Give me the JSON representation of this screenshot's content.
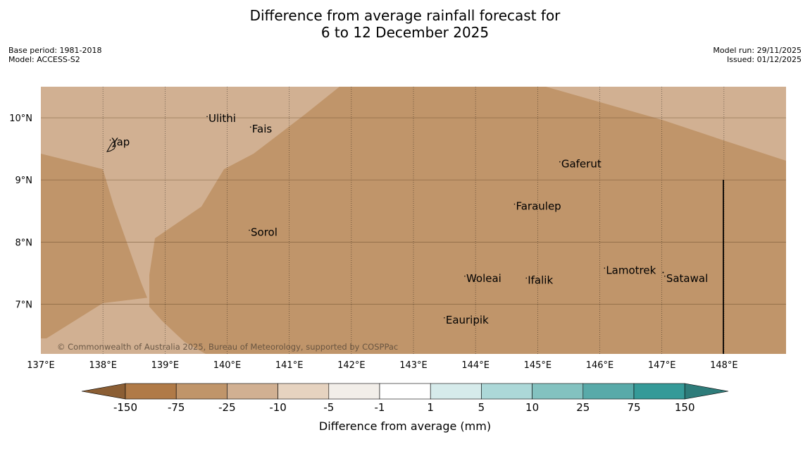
{
  "title": {
    "line1": "Difference from average rainfall forecast for",
    "line2": "6 to 12 December 2025"
  },
  "meta_left": {
    "base_period": "Base period: 1981-2018",
    "model": "Model: ACCESS-S2"
  },
  "meta_right": {
    "model_run": "Model run: 29/11/2025",
    "issued": "Issued: 01/12/2025"
  },
  "map": {
    "lon_range": [
      137,
      149
    ],
    "lat_range": [
      6.2,
      10.5
    ],
    "lon_ticks": [
      {
        "value": 137,
        "label": "137°E"
      },
      {
        "value": 138,
        "label": "138°E"
      },
      {
        "value": 139,
        "label": "139°E"
      },
      {
        "value": 140,
        "label": "140°E"
      },
      {
        "value": 141,
        "label": "141°E"
      },
      {
        "value": 142,
        "label": "142°E"
      },
      {
        "value": 143,
        "label": "143°E"
      },
      {
        "value": 144,
        "label": "144°E"
      },
      {
        "value": 145,
        "label": "145°E"
      },
      {
        "value": 146,
        "label": "146°E"
      },
      {
        "value": 147,
        "label": "147°E"
      },
      {
        "value": 148,
        "label": "148°E"
      }
    ],
    "lat_ticks": [
      {
        "value": 10,
        "label": "10°N"
      },
      {
        "value": 9,
        "label": "9°N"
      },
      {
        "value": 8,
        "label": "8°N"
      },
      {
        "value": 7,
        "label": "7°N"
      }
    ],
    "places": [
      {
        "name": "Yap",
        "lon": 138.14,
        "lat": 9.55
      },
      {
        "name": "Ulithi",
        "lon": 139.7,
        "lat": 9.93
      },
      {
        "name": "Fais",
        "lon": 140.4,
        "lat": 9.76
      },
      {
        "name": "Gaferut",
        "lon": 145.38,
        "lat": 9.2
      },
      {
        "name": "Faraulep",
        "lon": 144.65,
        "lat": 8.52
      },
      {
        "name": "Sorol",
        "lon": 140.38,
        "lat": 8.1
      },
      {
        "name": "Woleai",
        "lon": 143.85,
        "lat": 7.36
      },
      {
        "name": "Ifalik",
        "lon": 144.84,
        "lat": 7.33
      },
      {
        "name": "Lamotrek",
        "lon": 146.1,
        "lat": 7.49
      },
      {
        "name": "Satawal",
        "lon": 147.07,
        "lat": 7.36
      },
      {
        "name": "Eauripik",
        "lon": 143.52,
        "lat": 6.69
      }
    ],
    "zones": {
      "dark": "-75 to -25",
      "light": "-25 to -10"
    },
    "zone_colors": {
      "dark": "#c0956a",
      "light": "#d1b092"
    },
    "copyright": "© Commonwealth of Australia 2025, Bureau of Meteorology, supported by COSPPac"
  },
  "legend": {
    "title": "Difference from average (mm)",
    "tick_labels": [
      "-150",
      "-75",
      "-25",
      "-10",
      "-5",
      "-1",
      "1",
      "5",
      "10",
      "25",
      "75",
      "150"
    ],
    "colors": [
      "#8b5e34",
      "#b07a47",
      "#c0956a",
      "#d1b092",
      "#e6d3c0",
      "#f2eee9",
      "#ffffff",
      "#d6ebeb",
      "#acd8d8",
      "#83c2c0",
      "#58aaa9",
      "#359a98",
      "#2e7c7a"
    ]
  }
}
